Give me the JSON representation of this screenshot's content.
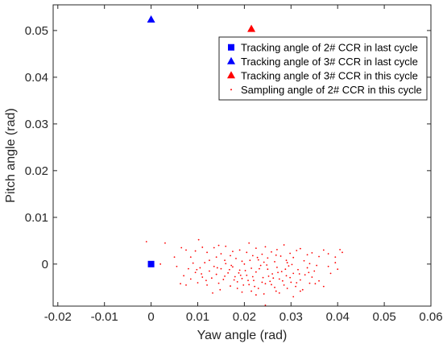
{
  "chart_data": {
    "type": "scatter",
    "title": "",
    "xlabel": "Yaw angle (rad)",
    "ylabel": "Pitch angle (rad)",
    "xlim": [
      -0.021,
      0.06
    ],
    "ylim": [
      -0.009,
      0.0555
    ],
    "xticks": [
      -0.02,
      -0.01,
      0,
      0.01,
      0.02,
      0.03,
      0.04,
      0.05,
      0.06
    ],
    "xtick_labels": [
      "-0.02",
      "-0.01",
      "0",
      "0.01",
      "0.02",
      "0.03",
      "0.04",
      "0.05",
      "0.06"
    ],
    "yticks": [
      0,
      0.01,
      0.02,
      0.03,
      0.04,
      0.05
    ],
    "ytick_labels": [
      "0",
      "0.01",
      "0.02",
      "0.03",
      "0.04",
      "0.05"
    ],
    "grid": false,
    "legend_position": "top-right",
    "series": [
      {
        "name": "Tracking angle of 2# CCR in last cycle",
        "marker": "square",
        "color": "#0000ff",
        "points": [
          [
            0,
            0
          ]
        ]
      },
      {
        "name": "Tracking angle of 3# CCR in last cycle",
        "marker": "triangle",
        "color": "#0000ff",
        "points": [
          [
            0,
            0.0523
          ]
        ]
      },
      {
        "name": "Tracking angle of 3# CCR in this cycle",
        "marker": "triangle",
        "color": "#ff0000",
        "points": [
          [
            0.0215,
            0.0503
          ]
        ]
      },
      {
        "name": "Sampling angle of 2# CCR in this cycle",
        "marker": "dot",
        "color": "#ff0000",
        "points": [
          [
            -0.001,
            0.0048
          ],
          [
            0.002,
            0.0
          ],
          [
            0.003,
            0.0045
          ],
          [
            0.005,
            0.0015
          ],
          [
            0.0055,
            -0.0005
          ],
          [
            0.0065,
            0.0035
          ],
          [
            0.0075,
            0.003
          ],
          [
            0.0085,
            0.0015
          ],
          [
            0.0095,
            0.0028
          ],
          [
            0.0102,
            0.0052
          ],
          [
            0.011,
            0.0036
          ],
          [
            0.012,
            0.0025
          ],
          [
            0.0125,
            0.0008
          ],
          [
            0.0135,
            0.0035
          ],
          [
            0.014,
            0.0015
          ],
          [
            0.0145,
            0.004
          ],
          [
            0.015,
            0.0022
          ],
          [
            0.0158,
            0.0008
          ],
          [
            0.016,
            0.0038
          ],
          [
            0.017,
            0.0018
          ],
          [
            0.0175,
            0.0027
          ],
          [
            0.0182,
            0.0012
          ],
          [
            0.019,
            0.003
          ],
          [
            0.0195,
            0.0006
          ],
          [
            0.0205,
            0.0025
          ],
          [
            0.021,
            0.0045
          ],
          [
            0.0218,
            0.0018
          ],
          [
            0.0225,
            0.0034
          ],
          [
            0.023,
            0.0009
          ],
          [
            0.0238,
            0.0021
          ],
          [
            0.0245,
            0.0037
          ],
          [
            0.025,
            0.0013
          ],
          [
            0.0258,
            0.0026
          ],
          [
            0.0265,
            0.0005
          ],
          [
            0.027,
            0.0031
          ],
          [
            0.0278,
            0.0017
          ],
          [
            0.0285,
            0.0041
          ],
          [
            0.029,
            0.0008
          ],
          [
            0.0298,
            0.0023
          ],
          [
            0.0305,
            0.0014
          ],
          [
            0.0312,
            0.0029
          ],
          [
            0.032,
            0.0033
          ],
          [
            0.0328,
            0.0007
          ],
          [
            0.0335,
            0.002
          ],
          [
            0.0345,
            0.0024
          ],
          [
            0.036,
            0.0016
          ],
          [
            0.037,
            0.003
          ],
          [
            0.038,
            0.0022
          ],
          [
            0.0395,
            0.0015
          ],
          [
            0.0405,
            0.0031
          ],
          [
            0.041,
            0.0025
          ],
          [
            0.0395,
            0.0003
          ],
          [
            0.038,
            -0.0005
          ],
          [
            0.0355,
            -0.0003
          ],
          [
            0.034,
            0.0001
          ],
          [
            0.0063,
            -0.0042
          ],
          [
            0.007,
            -0.0025
          ],
          [
            0.0075,
            -0.0045
          ],
          [
            0.008,
            -0.001
          ],
          [
            0.0085,
            -0.0032
          ],
          [
            0.009,
            0.0002
          ],
          [
            0.0095,
            -0.0018
          ],
          [
            0.01,
            -0.004
          ],
          [
            0.0105,
            -0.0008
          ],
          [
            0.011,
            -0.0028
          ],
          [
            0.0115,
            0.0003
          ],
          [
            0.012,
            -0.0045
          ],
          [
            0.0125,
            -0.0015
          ],
          [
            0.013,
            -0.003
          ],
          [
            0.0135,
            -0.0005
          ],
          [
            0.014,
            -0.0022
          ],
          [
            0.0145,
            -0.0041
          ],
          [
            0.015,
            -0.001
          ],
          [
            0.0155,
            -0.0033
          ],
          [
            0.016,
            0.0001
          ],
          [
            0.0165,
            -0.0019
          ],
          [
            0.017,
            -0.0047
          ],
          [
            0.0175,
            -0.0006
          ],
          [
            0.018,
            -0.0027
          ],
          [
            0.0185,
            -0.0038
          ],
          [
            0.019,
            -0.0013
          ],
          [
            0.0195,
            -0.0031
          ],
          [
            0.02,
            0.0
          ],
          [
            0.0205,
            -0.0024
          ],
          [
            0.021,
            -0.0044
          ],
          [
            0.0215,
            -0.0009
          ],
          [
            0.022,
            -0.0035
          ],
          [
            0.0225,
            -0.0017
          ],
          [
            0.023,
            -0.0052
          ],
          [
            0.0235,
            -0.0003
          ],
          [
            0.024,
            -0.0029
          ],
          [
            0.0245,
            -0.0042
          ],
          [
            0.025,
            -0.0011
          ],
          [
            0.0255,
            -0.0037
          ],
          [
            0.026,
            -0.0021
          ],
          [
            0.0265,
            -0.005
          ],
          [
            0.027,
            -0.0007
          ],
          [
            0.0275,
            -0.0032
          ],
          [
            0.028,
            -0.0016
          ],
          [
            0.0285,
            -0.0045
          ],
          [
            0.029,
            -0.0025
          ],
          [
            0.0295,
            -0.0004
          ],
          [
            0.03,
            -0.0039
          ],
          [
            0.0305,
            -0.002
          ],
          [
            0.031,
            -0.0048
          ],
          [
            0.0315,
            -0.0012
          ],
          [
            0.032,
            -0.0034
          ],
          [
            0.0325,
            -0.0055
          ],
          [
            0.033,
            -0.0023
          ],
          [
            0.0335,
            -0.0008
          ],
          [
            0.034,
            -0.0041
          ],
          [
            0.0345,
            -0.0028
          ],
          [
            0.035,
            -0.0015
          ],
          [
            0.036,
            -0.0036
          ],
          [
            0.037,
            -0.0048
          ],
          [
            0.0385,
            -0.002
          ],
          [
            0.04,
            -0.0011
          ],
          [
            0.0245,
            -0.0088
          ],
          [
            0.0305,
            -0.007
          ],
          [
            0.0195,
            -0.006
          ],
          [
            0.0225,
            -0.0066
          ],
          [
            0.0275,
            -0.0062
          ],
          [
            0.032,
            -0.0058
          ],
          [
            0.0132,
            -0.0062
          ],
          [
            0.0148,
            -0.0055
          ],
          [
            0.0172,
            -0.0003
          ],
          [
            0.0188,
            -0.0019
          ],
          [
            0.0202,
            -0.0014
          ],
          [
            0.0218,
            -0.0027
          ],
          [
            0.0232,
            -0.001
          ],
          [
            0.0248,
            -0.0002
          ],
          [
            0.0262,
            -0.003
          ],
          [
            0.0288,
            -0.0011
          ],
          [
            0.0302,
            -0.0001
          ],
          [
            0.0318,
            -0.0021
          ],
          [
            0.0212,
            0.0008
          ],
          [
            0.0228,
            0.0014
          ],
          [
            0.0242,
            0.0004
          ],
          [
            0.0268,
            0.0019
          ],
          [
            0.0292,
            0.0003
          ],
          [
            0.0158,
            -0.0026
          ],
          [
            0.0142,
            -0.0008
          ],
          [
            0.0108,
            -0.0021
          ],
          [
            0.0118,
            -0.0035
          ],
          [
            0.0098,
            -0.0012
          ],
          [
            0.0198,
            -0.0045
          ],
          [
            0.0208,
            -0.0035
          ],
          [
            0.0238,
            -0.0039
          ],
          [
            0.0252,
            -0.0026
          ],
          [
            0.0282,
            -0.0036
          ],
          [
            0.0178,
            -0.0034
          ],
          [
            0.0168,
            -0.0012
          ],
          [
            0.0192,
            -0.0024
          ],
          [
            0.0222,
            -0.0048
          ],
          [
            0.0258,
            -0.0044
          ],
          [
            0.0272,
            -0.0018
          ],
          [
            0.0298,
            -0.0029
          ],
          [
            0.0312,
            -0.004
          ],
          [
            0.0338,
            -0.0018
          ],
          [
            0.0352,
            -0.0042
          ],
          [
            0.0268,
            -0.0058
          ],
          [
            0.0242,
            -0.0064
          ],
          [
            0.0215,
            -0.0058
          ],
          [
            0.0185,
            -0.0052
          ],
          [
            0.0292,
            -0.0052
          ]
        ]
      }
    ]
  }
}
